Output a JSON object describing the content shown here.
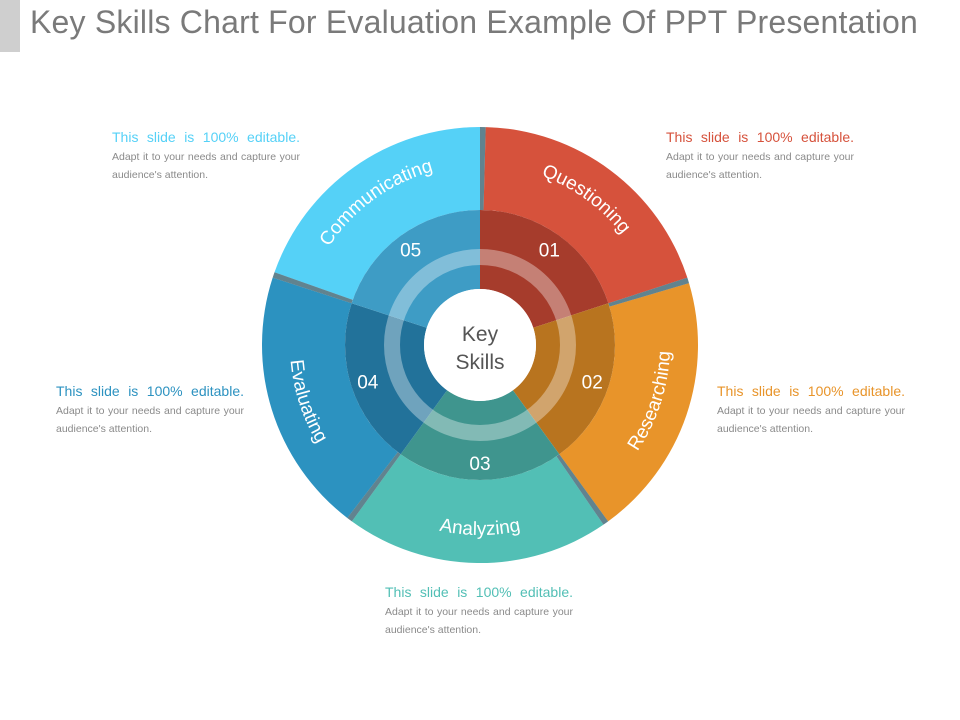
{
  "title": "Key Skills Chart For Evaluation Example Of PPT Presentation",
  "center": {
    "line1": "Key",
    "line2": "Skills"
  },
  "segments": [
    {
      "num": "01",
      "label": "Questioning",
      "color": "#d6523c",
      "inner": "#a63c2c"
    },
    {
      "num": "02",
      "label": "Researching",
      "color": "#e8942a",
      "inner": "#b8741f"
    },
    {
      "num": "03",
      "label": "Analyzing",
      "color": "#52bfb5",
      "inner": "#3f958e"
    },
    {
      "num": "04",
      "label": "Evaluating",
      "color": "#2c92c0",
      "inner": "#22729a"
    },
    {
      "num": "05",
      "label": "Communicating",
      "color": "#55d1f7",
      "inner": "#3e9cc5"
    }
  ],
  "notes": [
    {
      "lead": "This slide is 100% editable.",
      "body": "Adapt it to your needs and capture your audience's attention.",
      "color": "#55d1f7"
    },
    {
      "lead": "This slide is 100% editable.",
      "body": "Adapt it to your needs and capture your audience's attention.",
      "color": "#d6523c"
    },
    {
      "lead": "This slide is 100% editable.",
      "body": "Adapt it to your needs and capture your audience's attention.",
      "color": "#2c92c0"
    },
    {
      "lead": "This slide is 100% editable.",
      "body": "Adapt it to your needs and capture your audience's attention.",
      "color": "#e8942a"
    },
    {
      "lead": "This slide is 100% editable.",
      "body": "Adapt it to your needs and capture your audience's attention.",
      "color": "#52bfb5"
    }
  ]
}
